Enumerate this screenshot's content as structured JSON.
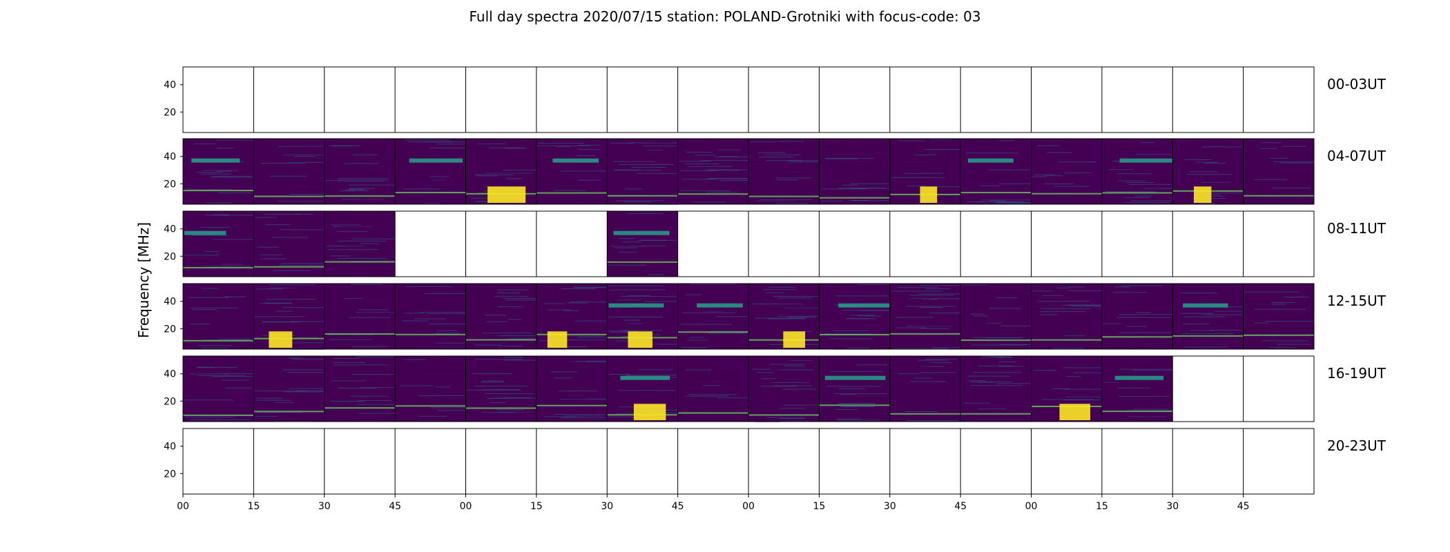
{
  "chart_data": {
    "type": "heatmap",
    "title": "Full day spectra 2020/07/15 station: POLAND-Grotniki with focus-code: 03",
    "ylabel": "Frequency [MHz]",
    "xlabel": "",
    "yticks": [
      20,
      40
    ],
    "ylim": [
      5,
      53
    ],
    "xtick_labels": [
      "00",
      "15",
      "30",
      "45",
      "00",
      "15",
      "30",
      "45",
      "00",
      "15",
      "30",
      "45",
      "00",
      "15",
      "30",
      "45"
    ],
    "colormap": "viridis",
    "colors": {
      "background": "#440154",
      "low": "#46085c",
      "mid": "#31688e",
      "band": "#26a18a",
      "high": "#6ccd5a",
      "max": "#fde725",
      "empty": "#ffffff",
      "frame": "#000000"
    },
    "rows": [
      {
        "label": "00-03UT",
        "available": [
          0,
          0,
          0,
          0,
          0,
          0,
          0,
          0,
          0,
          0,
          0,
          0,
          0,
          0,
          0,
          0
        ]
      },
      {
        "label": "04-07UT",
        "available": [
          1,
          1,
          1,
          1,
          1,
          1,
          1,
          1,
          1,
          1,
          1,
          1,
          1,
          1,
          1,
          1
        ]
      },
      {
        "label": "08-11UT",
        "available": [
          1,
          1,
          1,
          0,
          0,
          0,
          1,
          0,
          0,
          0,
          0,
          0,
          0,
          0,
          0,
          0
        ]
      },
      {
        "label": "12-15UT",
        "available": [
          1,
          1,
          1,
          1,
          1,
          1,
          1,
          1,
          1,
          1,
          1,
          1,
          1,
          1,
          1,
          1
        ]
      },
      {
        "label": "16-19UT",
        "available": [
          1,
          1,
          1,
          1,
          1,
          1,
          1,
          1,
          1,
          1,
          1,
          1,
          1,
          1,
          0,
          0
        ]
      },
      {
        "label": "20-23UT",
        "available": [
          0,
          0,
          0,
          0,
          0,
          0,
          0,
          0,
          0,
          0,
          0,
          0,
          0,
          0,
          0,
          0
        ]
      }
    ]
  }
}
